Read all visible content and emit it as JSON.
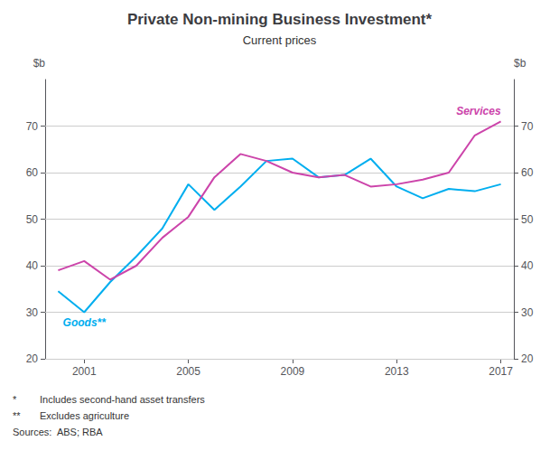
{
  "chart_data": {
    "type": "line",
    "title": "Private Non-mining Business Investment*",
    "subtitle": "Current prices",
    "ylabel": "$b",
    "y2label": "$b",
    "x": [
      2000,
      2001,
      2002,
      2003,
      2004,
      2005,
      2006,
      2007,
      2008,
      2009,
      2010,
      2011,
      2012,
      2013,
      2014,
      2015,
      2016,
      2017
    ],
    "series": [
      {
        "name": "Goods**",
        "color": "#00AEEF",
        "values": [
          34.5,
          30.0,
          36.5,
          42.0,
          48.0,
          57.5,
          52.0,
          57.0,
          62.5,
          63.0,
          59.0,
          59.5,
          63.0,
          57.0,
          54.5,
          56.5,
          56.0,
          57.5
        ]
      },
      {
        "name": "Services",
        "color": "#CC44AA",
        "values": [
          39.0,
          41.0,
          37.0,
          40.0,
          46.0,
          50.5,
          59.0,
          64.0,
          62.5,
          60.0,
          59.0,
          59.5,
          57.0,
          57.5,
          58.5,
          60.0,
          68.0,
          71.0
        ]
      }
    ],
    "xlim": [
      1999.5,
      2017.5
    ],
    "xticks": [
      2001,
      2005,
      2009,
      2013,
      2017
    ],
    "ylim": [
      20,
      80
    ],
    "yticks": [
      20,
      30,
      40,
      50,
      60,
      70
    ],
    "y2lim": [
      20,
      80
    ],
    "y2ticks": [
      20,
      30,
      40,
      50,
      60,
      70
    ],
    "grid": true,
    "footnotes": [
      {
        "symbol": "*",
        "text": "Includes second-hand asset transfers"
      },
      {
        "symbol": "**",
        "text": "Excludes agriculture"
      },
      {
        "text": "Sources:  ABS; RBA"
      }
    ]
  }
}
